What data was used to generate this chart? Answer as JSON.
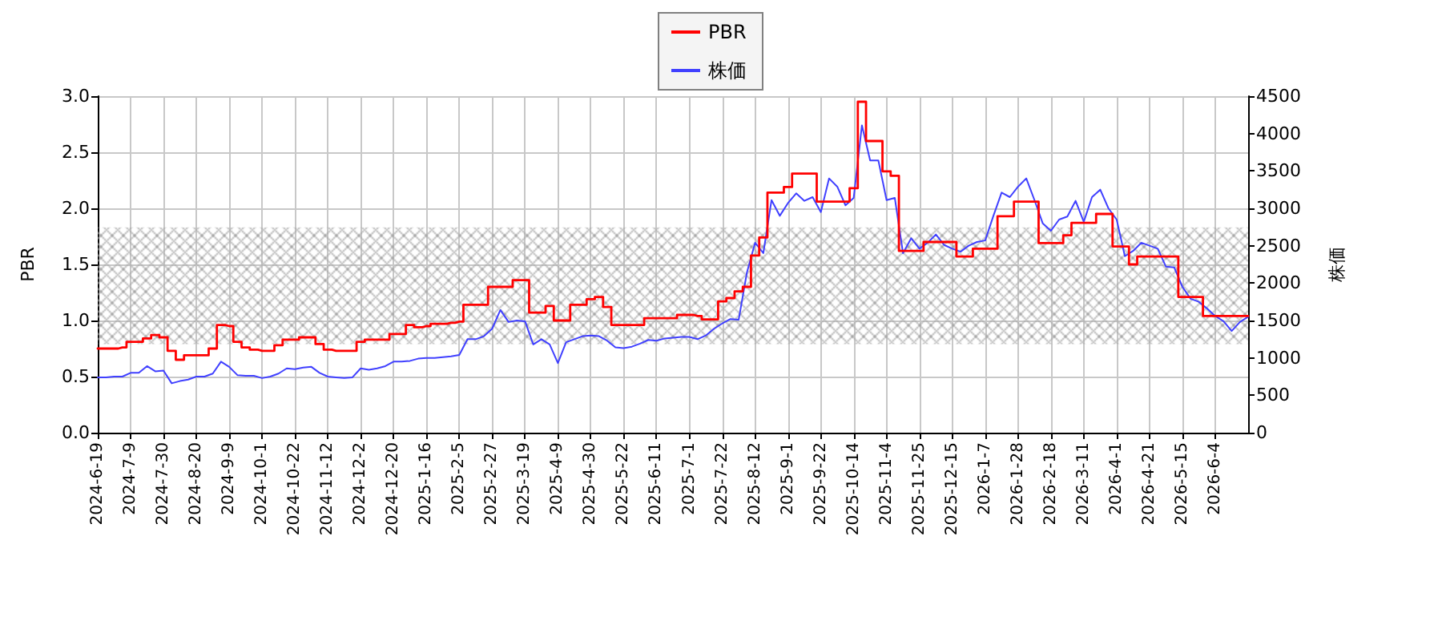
{
  "chart_data": {
    "type": "line",
    "categories": [
      "2024-6-19",
      null,
      null,
      null,
      "2024-7-9",
      null,
      null,
      null,
      "2024-7-30",
      null,
      null,
      null,
      "2024-8-20",
      null,
      null,
      null,
      "2024-9-9",
      null,
      null,
      null,
      "2024-10-1",
      null,
      null,
      null,
      "2024-10-22",
      null,
      null,
      null,
      "2024-11-12",
      null,
      null,
      null,
      "2024-12-2",
      null,
      null,
      null,
      "2024-12-20",
      null,
      null,
      null,
      "2025-1-16",
      null,
      null,
      null,
      "2025-2-5",
      null,
      null,
      null,
      "2025-2-27",
      null,
      null,
      null,
      "2025-3-19",
      null,
      null,
      null,
      "2025-4-9",
      null,
      null,
      null,
      "2025-4-30",
      null,
      null,
      null,
      "2025-5-22",
      null,
      null,
      null,
      "2025-6-11",
      null,
      null,
      null,
      "2025-7-1",
      null,
      null,
      null,
      "2025-7-22",
      null,
      null,
      null,
      "2025-8-12",
      null,
      null,
      null,
      "2025-9-1",
      null,
      null,
      null,
      "2025-9-22",
      null,
      null,
      null,
      "2025-10-14",
      null,
      null,
      null,
      "2025-11-4",
      null,
      null,
      null,
      "2025-11-25",
      null,
      null,
      null,
      "2025-12-15",
      null,
      null,
      null,
      "2026-1-7",
      null,
      null,
      null,
      "2026-1-28",
      null,
      null,
      null,
      "2026-2-18",
      null,
      null,
      null,
      "2026-3-11",
      null,
      null,
      null,
      "2026-4-1",
      null,
      null,
      null,
      "2026-4-21",
      null,
      null,
      null,
      "2026-5-15",
      null,
      null,
      null,
      "2026-6-4",
      null,
      null,
      null,
      null
    ],
    "series": [
      {
        "name": "PBR",
        "type": "step",
        "color": "#ff0000",
        "values": [
          0.75,
          0.75,
          0.75,
          0.76,
          0.81,
          0.81,
          0.84,
          0.87,
          0.85,
          0.73,
          0.65,
          0.69,
          0.69,
          0.69,
          0.75,
          0.96,
          0.95,
          0.81,
          0.76,
          0.74,
          0.73,
          0.73,
          0.78,
          0.83,
          0.83,
          0.85,
          0.85,
          0.79,
          0.74,
          0.73,
          0.73,
          0.73,
          0.81,
          0.83,
          0.83,
          0.83,
          0.88,
          0.88,
          0.96,
          0.94,
          0.95,
          0.97,
          0.97,
          0.98,
          0.99,
          1.14,
          1.14,
          1.14,
          1.3,
          1.3,
          1.3,
          1.36,
          1.36,
          1.07,
          1.07,
          1.13,
          1.0,
          1.0,
          1.14,
          1.14,
          1.19,
          1.21,
          1.12,
          0.96,
          0.96,
          0.96,
          0.96,
          1.02,
          1.02,
          1.02,
          1.02,
          1.05,
          1.05,
          1.04,
          1.01,
          1.01,
          1.17,
          1.2,
          1.26,
          1.3,
          1.58,
          1.74,
          2.14,
          2.14,
          2.19,
          2.31,
          2.31,
          2.31,
          2.06,
          2.06,
          2.06,
          2.06,
          2.18,
          2.95,
          2.6,
          2.6,
          2.33,
          2.29,
          1.62,
          1.62,
          1.62,
          1.7,
          1.7,
          1.7,
          1.7,
          1.57,
          1.57,
          1.64,
          1.64,
          1.64,
          1.93,
          1.93,
          2.06,
          2.06,
          2.06,
          1.69,
          1.69,
          1.69,
          1.76,
          1.87,
          1.87,
          1.87,
          1.95,
          1.95,
          1.66,
          1.66,
          1.5,
          1.57,
          1.57,
          1.57,
          1.57,
          1.57,
          1.21,
          1.21,
          1.21,
          1.04,
          1.04,
          1.04,
          1.04,
          1.04,
          1.04
        ]
      },
      {
        "name": "株価",
        "type": "line",
        "axis": "y2",
        "color": "#4040ff",
        "values": [
          740,
          740,
          750,
          750,
          800,
          800,
          890,
          820,
          830,
          660,
          690,
          710,
          750,
          750,
          790,
          950,
          880,
          770,
          760,
          760,
          730,
          750,
          790,
          860,
          850,
          870,
          880,
          800,
          750,
          740,
          730,
          740,
          860,
          840,
          860,
          890,
          950,
          950,
          960,
          990,
          1000,
          1000,
          1010,
          1020,
          1040,
          1250,
          1250,
          1290,
          1390,
          1640,
          1480,
          1500,
          1490,
          1180,
          1250,
          1180,
          930,
          1210,
          1250,
          1290,
          1300,
          1290,
          1230,
          1140,
          1130,
          1150,
          1190,
          1240,
          1230,
          1260,
          1270,
          1280,
          1280,
          1250,
          1300,
          1390,
          1460,
          1520,
          1510,
          2140,
          2540,
          2400,
          3110,
          2900,
          3070,
          3200,
          3100,
          3150,
          2950,
          3400,
          3290,
          3040,
          3140,
          4110,
          3640,
          3640,
          3110,
          3140,
          2400,
          2600,
          2460,
          2540,
          2650,
          2510,
          2460,
          2420,
          2500,
          2550,
          2570,
          2900,
          3210,
          3150,
          3290,
          3400,
          3110,
          2800,
          2700,
          2850,
          2890,
          3100,
          2820,
          3150,
          3250,
          3000,
          2850,
          2360,
          2430,
          2540,
          2500,
          2460,
          2220,
          2210,
          1950,
          1790,
          1750,
          1660,
          1560,
          1490,
          1360,
          1480,
          1550
        ]
      }
    ],
    "ylabel": "PBR",
    "y2label": "株価",
    "ylim": [
      0,
      3
    ],
    "yticks": [
      {
        "value": 0,
        "label": "0.0"
      },
      {
        "value": 0.5,
        "label": "0.5"
      },
      {
        "value": 1,
        "label": "1.0"
      },
      {
        "value": 1.5,
        "label": "1.5"
      },
      {
        "value": 2,
        "label": "2.0"
      },
      {
        "value": 2.5,
        "label": "2.5"
      },
      {
        "value": 3,
        "label": "3.0"
      }
    ],
    "y2lim": [
      0,
      4500
    ],
    "y2ticks": [
      0,
      500,
      1000,
      1500,
      2000,
      2500,
      3000,
      3500,
      4000,
      4500
    ],
    "bands": [
      {
        "axis": "y",
        "from": 0.79,
        "to": 1.83,
        "color": "#aaaaaa"
      }
    ],
    "grid": true,
    "legend": "top"
  }
}
